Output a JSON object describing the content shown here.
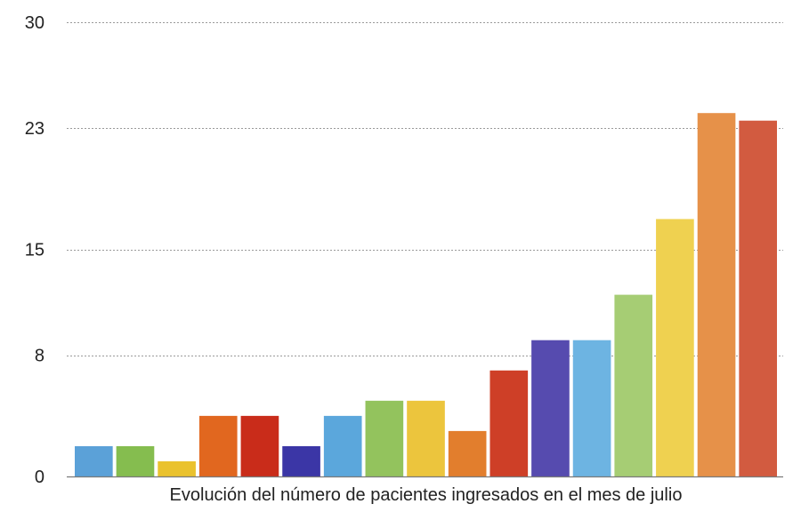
{
  "chart_data": {
    "type": "bar",
    "title": "",
    "xlabel": "Evolución del número de pacientes ingresados en el mes de julio",
    "ylabel": "",
    "ylim": [
      0,
      30
    ],
    "yticks": [
      0,
      8,
      15,
      23,
      30
    ],
    "ytick_labels": [
      "0",
      "8",
      "15",
      "23",
      "30"
    ],
    "grid": true,
    "legend": "none",
    "values": [
      2,
      2,
      1,
      4,
      4,
      2,
      4,
      5,
      5,
      3,
      7,
      9,
      9,
      12,
      17,
      24,
      23.5
    ],
    "colors": [
      "#5ba1d8",
      "#85bd4f",
      "#eac22e",
      "#e1671f",
      "#c92c1a",
      "#3b36a6",
      "#5ba7dc",
      "#93c35d",
      "#ecc53d",
      "#e27e2d",
      "#ce3f27",
      "#564baf",
      "#6db4e2",
      "#a6cd74",
      "#efd150",
      "#e69149",
      "#d25b40"
    ]
  }
}
